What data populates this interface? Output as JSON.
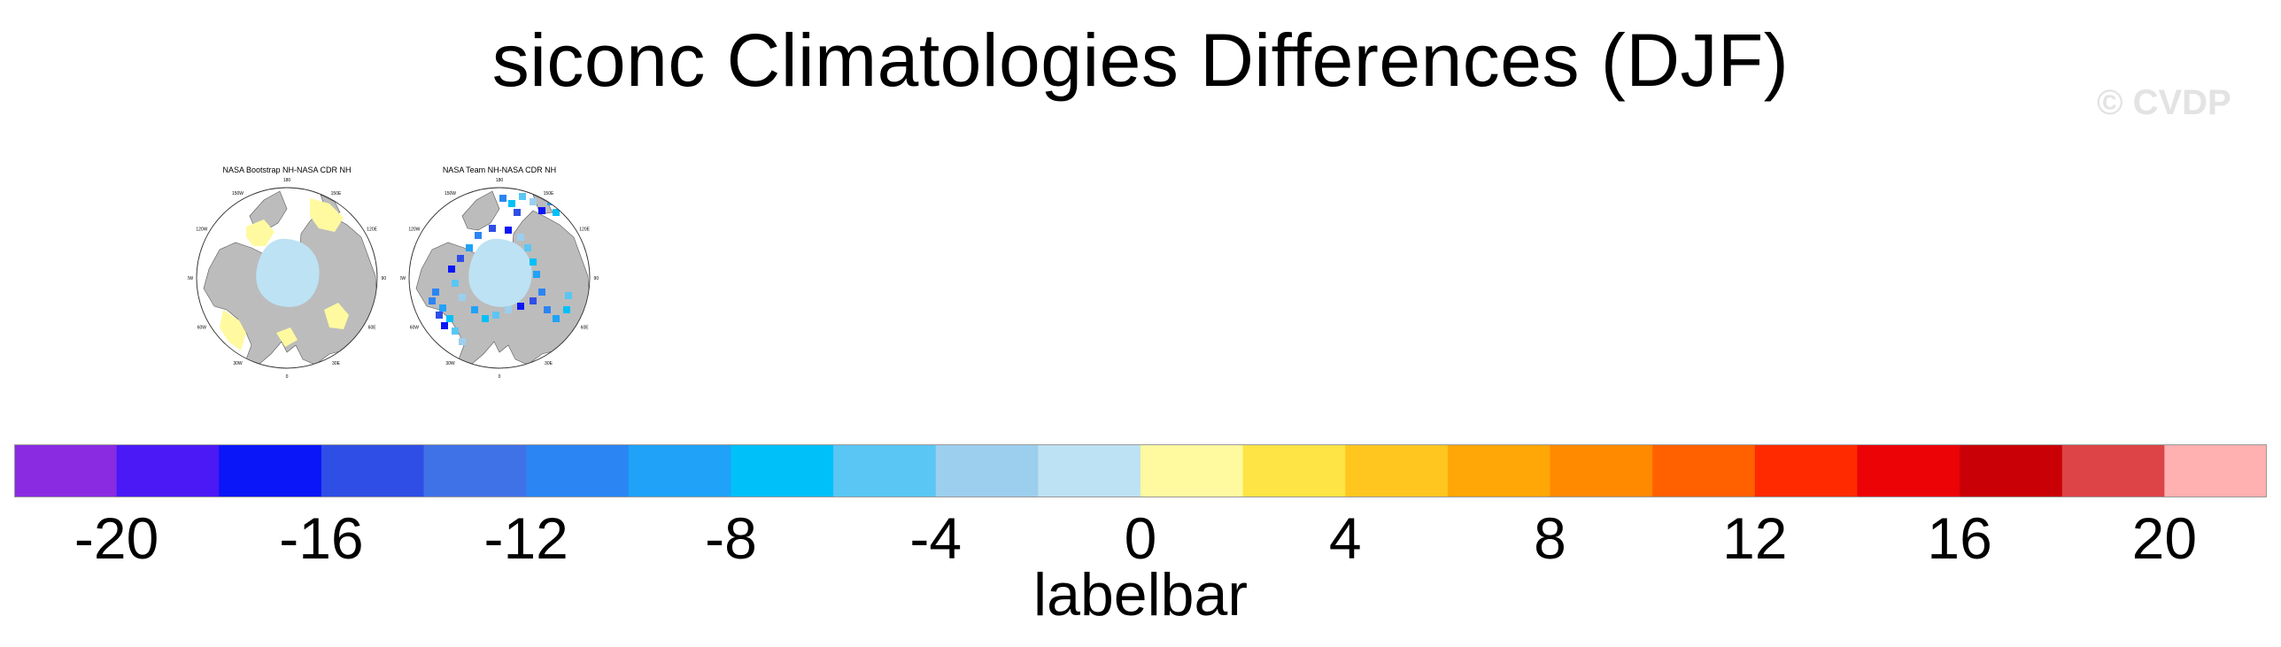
{
  "title": "siconc Climatologies Differences (DJF)",
  "watermark": "© CVDP",
  "panels": [
    {
      "title": "NASA Bootstrap NH-NASA CDR NH",
      "lon_labels": [
        "180",
        "150E",
        "120E",
        "90E",
        "60E",
        "30E",
        "0",
        "30W",
        "60W",
        "90W",
        "120W",
        "150W"
      ],
      "style": "bootstrap"
    },
    {
      "title": "NASA Team NH-NASA CDR NH",
      "lon_labels": [
        "180",
        "150E",
        "120E",
        "90E",
        "60E",
        "30E",
        "0",
        "30W",
        "60W",
        "90W",
        "120W",
        "150W"
      ],
      "style": "team"
    }
  ],
  "chart_data": {
    "type": "heatmap",
    "title": "siconc Climatologies Differences (DJF)",
    "projection": "north polar stereographic",
    "colorbar": {
      "title": "labelbar",
      "orientation": "horizontal",
      "levels": [
        -22,
        -20,
        -18,
        -16,
        -14,
        -12,
        -10,
        -8,
        -6,
        -4,
        -2,
        0,
        2,
        4,
        6,
        8,
        10,
        12,
        14,
        16,
        18,
        20,
        22
      ],
      "tick_labels": [
        "-20",
        "-16",
        "-12",
        "-8",
        "-4",
        "0",
        "4",
        "8",
        "12",
        "16",
        "20"
      ],
      "colors": [
        "#8a2be2",
        "#4a19f5",
        "#0b16f8",
        "#2f4ee6",
        "#3f72e6",
        "#2b85f3",
        "#20a2f8",
        "#00c0f9",
        "#5ac6f3",
        "#9ccfee",
        "#bde2f4",
        "#fffaa0",
        "#ffe445",
        "#ffc61f",
        "#ffa707",
        "#ff8a00",
        "#ff6000",
        "#ff2a00",
        "#eb0306",
        "#c90005",
        "#dc4447",
        "#ffb0b0"
      ]
    },
    "panels": [
      {
        "title": "NASA Bootstrap NH-NASA CDR NH"
      },
      {
        "title": "NASA Team NH-NASA CDR NH"
      }
    ]
  }
}
